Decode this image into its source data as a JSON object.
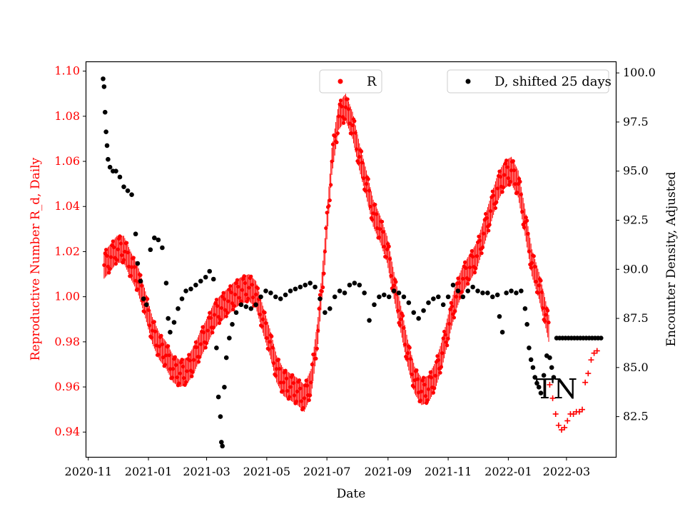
{
  "chart_data": {
    "type": "scatter",
    "title": "",
    "xlabel": "Date",
    "ylabel_left": "Reproductive Number R_d, Daily",
    "ylabel_right": "Encounter Density, Adjusted",
    "x_range": [
      "2020-10-30",
      "2022-04-20"
    ],
    "ylim_left": [
      0.929,
      1.104
    ],
    "ylim_right": [
      80.45,
      100.55
    ],
    "x_ticks": [
      "2020-11",
      "2021-01",
      "2021-03",
      "2021-05",
      "2021-07",
      "2021-09",
      "2021-11",
      "2022-01",
      "2022-03"
    ],
    "y_ticks_left": [
      "0.94",
      "0.96",
      "0.98",
      "1.00",
      "1.02",
      "1.04",
      "1.06",
      "1.08",
      "1.10"
    ],
    "y_ticks_right": [
      "82.5",
      "85.0",
      "87.5",
      "90.0",
      "92.5",
      "95.0",
      "97.5",
      "100.0"
    ],
    "legend": [
      {
        "label": "R",
        "color": "#ff0000",
        "position": "top-center"
      },
      {
        "label": "D, shifted 25 days",
        "color": "#000000",
        "position": "top-right"
      }
    ],
    "annotation": "TN",
    "series": [
      {
        "name": "R",
        "axis": "left",
        "color": "#ff0000",
        "marker": "dot",
        "oscillation_amplitude": 0.006,
        "points": [
          [
            "2020-11-17",
            1.014
          ],
          [
            "2020-11-23",
            1.017
          ],
          [
            "2020-11-30",
            1.021
          ],
          [
            "2020-12-07",
            1.021
          ],
          [
            "2020-12-14",
            1.014
          ],
          [
            "2020-12-21",
            1.008
          ],
          [
            "2020-12-28",
            0.998
          ],
          [
            "2021-01-05",
            0.985
          ],
          [
            "2021-01-12",
            0.978
          ],
          [
            "2021-01-19",
            0.974
          ],
          [
            "2021-01-26",
            0.968
          ],
          [
            "2021-02-02",
            0.966
          ],
          [
            "2021-02-09",
            0.967
          ],
          [
            "2021-02-16",
            0.972
          ],
          [
            "2021-02-23",
            0.979
          ],
          [
            "2021-03-02",
            0.985
          ],
          [
            "2021-03-09",
            0.992
          ],
          [
            "2021-03-16",
            0.995
          ],
          [
            "2021-03-23",
            0.998
          ],
          [
            "2021-03-30",
            1.001
          ],
          [
            "2021-04-06",
            1.003
          ],
          [
            "2021-04-13",
            1.004
          ],
          [
            "2021-04-20",
            1.001
          ],
          [
            "2021-04-27",
            0.99
          ],
          [
            "2021-05-04",
            0.98
          ],
          [
            "2021-05-11",
            0.968
          ],
          [
            "2021-05-18",
            0.962
          ],
          [
            "2021-05-25",
            0.96
          ],
          [
            "2021-06-01",
            0.958
          ],
          [
            "2021-06-08",
            0.955
          ],
          [
            "2021-06-15",
            0.962
          ],
          [
            "2021-06-22",
            0.985
          ],
          [
            "2021-06-29",
            1.02
          ],
          [
            "2021-07-06",
            1.06
          ],
          [
            "2021-07-13",
            1.08
          ],
          [
            "2021-07-20",
            1.084
          ],
          [
            "2021-07-27",
            1.076
          ],
          [
            "2021-08-03",
            1.062
          ],
          [
            "2021-08-10",
            1.05
          ],
          [
            "2021-08-17",
            1.037
          ],
          [
            "2021-08-24",
            1.03
          ],
          [
            "2021-08-31",
            1.021
          ],
          [
            "2021-09-07",
            1.005
          ],
          [
            "2021-09-14",
            0.99
          ],
          [
            "2021-09-21",
            0.975
          ],
          [
            "2021-09-28",
            0.963
          ],
          [
            "2021-10-05",
            0.958
          ],
          [
            "2021-10-12",
            0.959
          ],
          [
            "2021-10-19",
            0.965
          ],
          [
            "2021-10-26",
            0.975
          ],
          [
            "2021-11-02",
            0.988
          ],
          [
            "2021-11-09",
            1.0
          ],
          [
            "2021-11-16",
            1.008
          ],
          [
            "2021-11-23",
            1.013
          ],
          [
            "2021-11-30",
            1.018
          ],
          [
            "2021-12-07",
            1.028
          ],
          [
            "2021-12-14",
            1.038
          ],
          [
            "2021-12-21",
            1.048
          ],
          [
            "2021-12-28",
            1.054
          ],
          [
            "2022-01-04",
            1.056
          ],
          [
            "2022-01-11",
            1.05
          ],
          [
            "2022-01-18",
            1.033
          ],
          [
            "2022-01-25",
            1.015
          ],
          [
            "2022-02-01",
            1.005
          ],
          [
            "2022-02-08",
            0.992
          ],
          [
            "2022-02-11",
            0.986
          ]
        ]
      },
      {
        "name": "R (forecast)",
        "axis": "left",
        "color": "#ff0000",
        "marker": "plus",
        "points": [
          [
            "2022-02-12",
            0.961
          ],
          [
            "2022-02-15",
            0.955
          ],
          [
            "2022-02-18",
            0.948
          ],
          [
            "2022-02-21",
            0.943
          ],
          [
            "2022-02-24",
            0.941
          ],
          [
            "2022-02-27",
            0.942
          ],
          [
            "2022-03-02",
            0.945
          ],
          [
            "2022-03-05",
            0.948
          ],
          [
            "2022-03-08",
            0.948
          ],
          [
            "2022-03-11",
            0.949
          ],
          [
            "2022-03-14",
            0.949
          ],
          [
            "2022-03-17",
            0.95
          ],
          [
            "2022-03-20",
            0.962
          ],
          [
            "2022-03-23",
            0.966
          ],
          [
            "2022-03-26",
            0.972
          ],
          [
            "2022-03-29",
            0.975
          ],
          [
            "2022-04-01",
            0.976
          ]
        ]
      },
      {
        "name": "D, shifted 25 days",
        "axis": "right",
        "color": "#000000",
        "marker": "dot",
        "points": [
          [
            "2020-11-16",
            99.7
          ],
          [
            "2020-11-17",
            99.3
          ],
          [
            "2020-11-18",
            98.0
          ],
          [
            "2020-11-19",
            97.0
          ],
          [
            "2020-11-20",
            96.3
          ],
          [
            "2020-11-21",
            95.6
          ],
          [
            "2020-11-23",
            95.2
          ],
          [
            "2020-11-26",
            95.0
          ],
          [
            "2020-11-29",
            95.0
          ],
          [
            "2020-12-03",
            94.7
          ],
          [
            "2020-12-07",
            94.2
          ],
          [
            "2020-12-11",
            94.0
          ],
          [
            "2020-12-15",
            93.8
          ],
          [
            "2020-12-19",
            91.8
          ],
          [
            "2020-12-21",
            90.3
          ],
          [
            "2020-12-24",
            89.4
          ],
          [
            "2020-12-27",
            88.5
          ],
          [
            "2020-12-30",
            88.2
          ],
          [
            "2021-01-03",
            91.0
          ],
          [
            "2021-01-07",
            91.6
          ],
          [
            "2021-01-11",
            91.5
          ],
          [
            "2021-01-15",
            91.1
          ],
          [
            "2021-01-19",
            89.3
          ],
          [
            "2021-01-21",
            87.5
          ],
          [
            "2021-01-23",
            86.8
          ],
          [
            "2021-01-27",
            87.3
          ],
          [
            "2021-01-31",
            88.0
          ],
          [
            "2021-02-04",
            88.5
          ],
          [
            "2021-02-08",
            88.9
          ],
          [
            "2021-02-13",
            89.0
          ],
          [
            "2021-02-18",
            89.2
          ],
          [
            "2021-02-23",
            89.4
          ],
          [
            "2021-02-28",
            89.6
          ],
          [
            "2021-03-04",
            89.9
          ],
          [
            "2021-03-08",
            89.5
          ],
          [
            "2021-03-11",
            86.0
          ],
          [
            "2021-03-13",
            83.5
          ],
          [
            "2021-03-15",
            82.5
          ],
          [
            "2021-03-16",
            81.2
          ],
          [
            "2021-03-17",
            81.0
          ],
          [
            "2021-03-19",
            84.0
          ],
          [
            "2021-03-21",
            85.5
          ],
          [
            "2021-03-24",
            86.5
          ],
          [
            "2021-03-27",
            87.2
          ],
          [
            "2021-03-31",
            87.8
          ],
          [
            "2021-04-05",
            88.2
          ],
          [
            "2021-04-10",
            88.1
          ],
          [
            "2021-04-15",
            88.0
          ],
          [
            "2021-04-20",
            88.2
          ],
          [
            "2021-04-25",
            88.6
          ],
          [
            "2021-04-30",
            88.9
          ],
          [
            "2021-05-05",
            88.8
          ],
          [
            "2021-05-10",
            88.6
          ],
          [
            "2021-05-15",
            88.5
          ],
          [
            "2021-05-20",
            88.7
          ],
          [
            "2021-05-25",
            88.9
          ],
          [
            "2021-05-30",
            89.0
          ],
          [
            "2021-06-04",
            89.1
          ],
          [
            "2021-06-09",
            89.2
          ],
          [
            "2021-06-14",
            89.3
          ],
          [
            "2021-06-19",
            89.1
          ],
          [
            "2021-06-24",
            88.5
          ],
          [
            "2021-06-29",
            87.8
          ],
          [
            "2021-07-04",
            88.0
          ],
          [
            "2021-07-09",
            88.6
          ],
          [
            "2021-07-14",
            88.9
          ],
          [
            "2021-07-19",
            88.8
          ],
          [
            "2021-07-24",
            89.2
          ],
          [
            "2021-07-29",
            89.3
          ],
          [
            "2021-08-03",
            89.2
          ],
          [
            "2021-08-08",
            88.8
          ],
          [
            "2021-08-13",
            87.4
          ],
          [
            "2021-08-18",
            88.2
          ],
          [
            "2021-08-23",
            88.6
          ],
          [
            "2021-08-28",
            88.7
          ],
          [
            "2021-09-02",
            88.6
          ],
          [
            "2021-09-07",
            88.9
          ],
          [
            "2021-09-12",
            88.8
          ],
          [
            "2021-09-17",
            88.6
          ],
          [
            "2021-09-22",
            88.3
          ],
          [
            "2021-09-27",
            87.8
          ],
          [
            "2021-10-02",
            87.5
          ],
          [
            "2021-10-07",
            87.9
          ],
          [
            "2021-10-12",
            88.3
          ],
          [
            "2021-10-17",
            88.5
          ],
          [
            "2021-10-22",
            88.6
          ],
          [
            "2021-10-27",
            88.2
          ],
          [
            "2021-11-01",
            88.6
          ],
          [
            "2021-11-06",
            89.2
          ],
          [
            "2021-11-11",
            88.9
          ],
          [
            "2021-11-16",
            88.6
          ],
          [
            "2021-11-21",
            88.9
          ],
          [
            "2021-11-26",
            89.1
          ],
          [
            "2021-12-01",
            88.9
          ],
          [
            "2021-12-06",
            88.8
          ],
          [
            "2021-12-11",
            88.8
          ],
          [
            "2021-12-16",
            88.6
          ],
          [
            "2021-12-21",
            88.7
          ],
          [
            "2021-12-23",
            87.6
          ],
          [
            "2021-12-26",
            86.8
          ],
          [
            "2021-12-30",
            88.8
          ],
          [
            "2022-01-04",
            88.9
          ],
          [
            "2022-01-09",
            88.8
          ],
          [
            "2022-01-14",
            88.9
          ],
          [
            "2022-01-18",
            88.0
          ],
          [
            "2022-01-20",
            87.2
          ],
          [
            "2022-01-22",
            86.0
          ],
          [
            "2022-01-24",
            85.4
          ],
          [
            "2022-01-26",
            85.0
          ],
          [
            "2022-01-28",
            84.5
          ],
          [
            "2022-01-30",
            84.2
          ],
          [
            "2022-02-01",
            84.0
          ],
          [
            "2022-02-03",
            83.7
          ],
          [
            "2022-02-06",
            84.6
          ],
          [
            "2022-02-09",
            85.6
          ],
          [
            "2022-02-12",
            85.5
          ],
          [
            "2022-02-14",
            85.0
          ],
          [
            "2022-02-16",
            84.5
          ],
          [
            "2022-02-19",
            86.5
          ],
          [
            "2022-02-22",
            86.5
          ],
          [
            "2022-02-25",
            86.5
          ],
          [
            "2022-02-28",
            86.5
          ],
          [
            "2022-03-03",
            86.5
          ],
          [
            "2022-03-06",
            86.5
          ],
          [
            "2022-03-09",
            86.5
          ],
          [
            "2022-03-12",
            86.5
          ],
          [
            "2022-03-15",
            86.5
          ],
          [
            "2022-03-18",
            86.5
          ],
          [
            "2022-03-21",
            86.5
          ],
          [
            "2022-03-24",
            86.5
          ],
          [
            "2022-03-27",
            86.5
          ],
          [
            "2022-03-30",
            86.5
          ],
          [
            "2022-04-02",
            86.5
          ],
          [
            "2022-04-05",
            86.5
          ]
        ]
      }
    ]
  }
}
